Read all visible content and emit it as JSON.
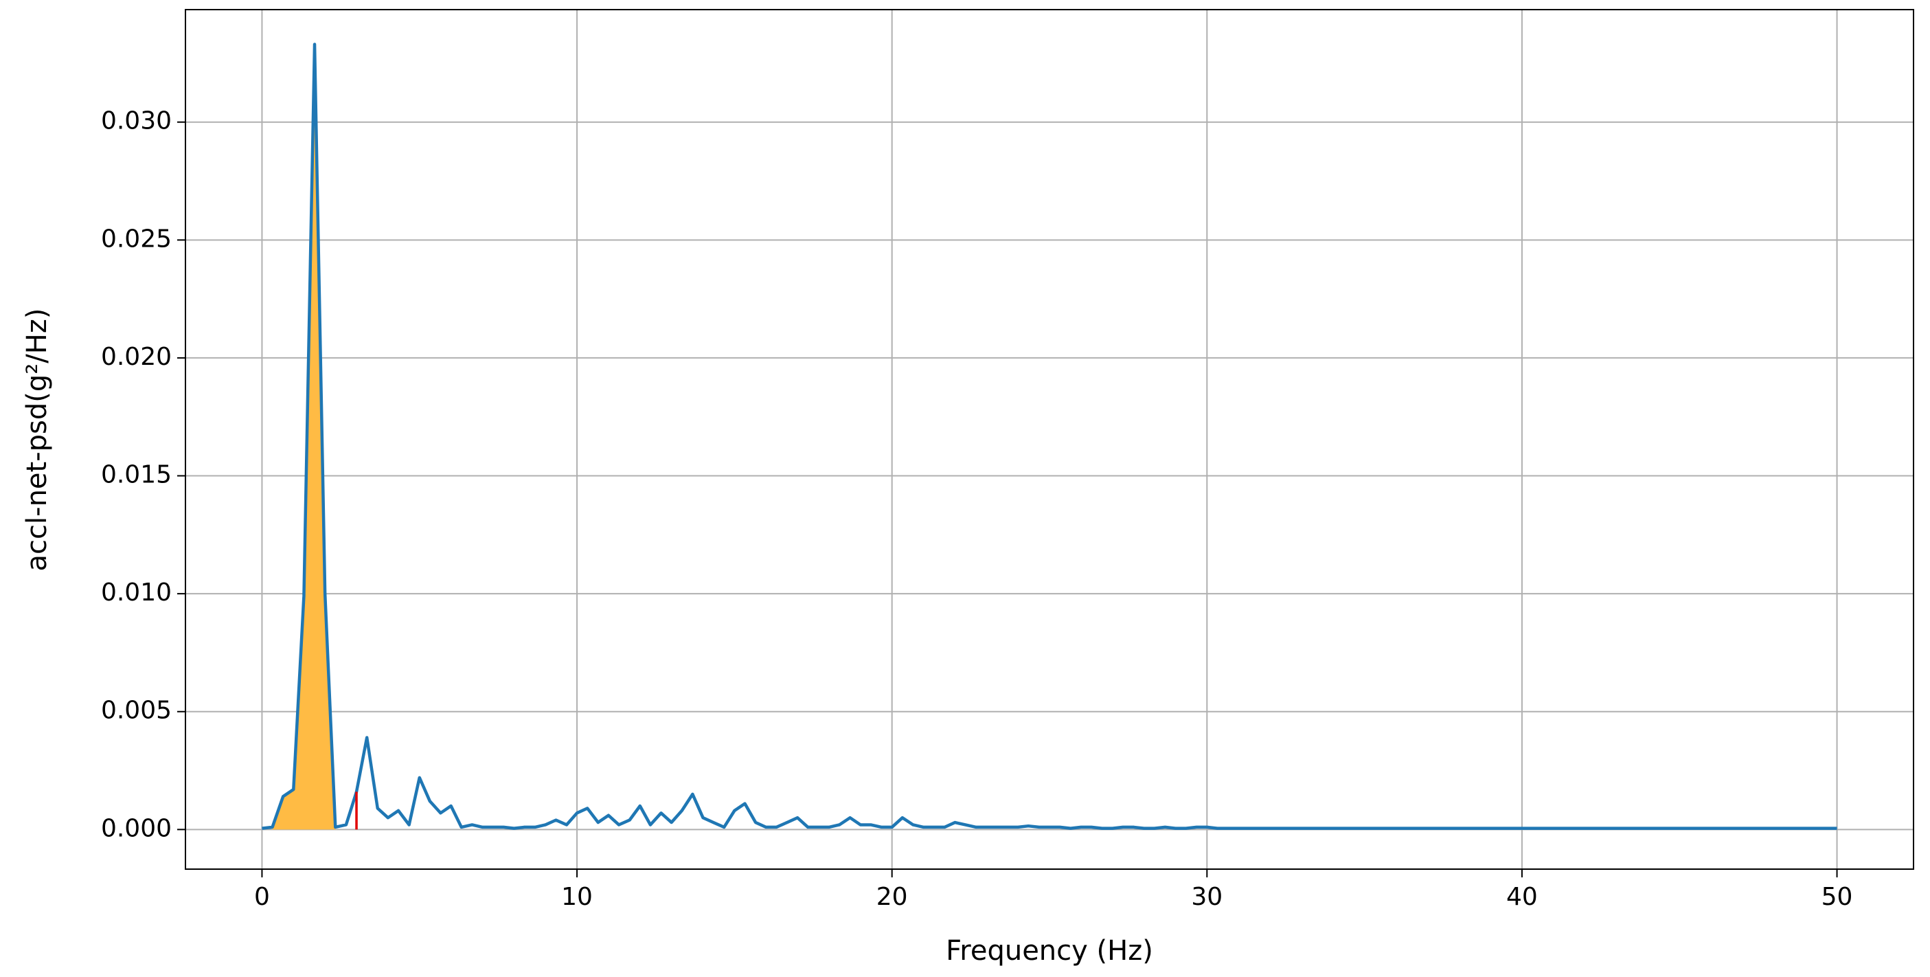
{
  "chart_data": {
    "type": "line",
    "x_label": "Frequency (Hz)",
    "y_label": "accl-net-psd(g²/Hz)",
    "x": [
      0,
      0.33,
      0.67,
      1,
      1.33,
      1.67,
      2,
      2.33,
      2.67,
      3,
      3.33,
      3.67,
      4,
      4.33,
      4.67,
      5,
      5.33,
      5.67,
      6,
      6.33,
      6.67,
      7,
      7.33,
      7.67,
      8,
      8.33,
      8.67,
      9,
      9.33,
      9.67,
      10,
      10.33,
      10.67,
      11,
      11.33,
      11.67,
      12,
      12.33,
      12.67,
      13,
      13.33,
      13.67,
      14,
      14.33,
      14.67,
      15,
      15.33,
      15.67,
      16,
      16.33,
      16.67,
      17,
      17.33,
      17.67,
      18,
      18.33,
      18.67,
      19,
      19.33,
      19.67,
      20,
      20.33,
      20.67,
      21,
      21.33,
      21.67,
      22,
      22.33,
      22.67,
      23,
      23.33,
      23.67,
      24,
      24.33,
      24.67,
      25,
      25.33,
      25.67,
      26,
      26.33,
      26.67,
      27,
      27.33,
      27.67,
      28,
      28.33,
      28.67,
      29,
      29.33,
      29.67,
      30,
      30.33,
      30.67,
      31,
      31.33,
      31.67,
      32,
      32.33,
      32.67,
      33,
      33.33,
      33.67,
      34,
      34.33,
      34.67,
      35,
      35.33,
      35.67,
      36,
      36.33,
      36.67,
      37,
      37.33,
      37.67,
      38,
      38.33,
      38.67,
      39,
      39.33,
      39.67,
      40,
      40.33,
      40.67,
      41,
      41.33,
      41.67,
      42,
      42.33,
      42.67,
      43,
      43.33,
      43.67,
      44,
      44.33,
      44.67,
      45,
      45.33,
      45.67,
      46,
      46.33,
      46.67,
      47,
      47.33,
      47.67,
      48,
      48.33,
      48.67,
      49,
      49.33,
      49.67,
      50
    ],
    "series": [
      {
        "color": "#1f77b4",
        "values": [
          5e-05,
          0.0001,
          0.0014,
          0.0017,
          0.0099,
          0.0333,
          0.01,
          0.0001,
          0.0002,
          0.0016,
          0.0039,
          0.0009,
          0.0005,
          0.0008,
          0.0002,
          0.0022,
          0.0012,
          0.0007,
          0.001,
          0.0001,
          0.0002,
          0.0001,
          0.0001,
          0.0001,
          5e-05,
          0.0001,
          0.0001,
          0.0002,
          0.0004,
          0.0002,
          0.0007,
          0.0009,
          0.0003,
          0.0006,
          0.0002,
          0.0004,
          0.001,
          0.0002,
          0.0007,
          0.0003,
          0.0008,
          0.0015,
          0.0005,
          0.0003,
          0.0001,
          0.0008,
          0.0011,
          0.0003,
          0.0001,
          0.0001,
          0.0003,
          0.0005,
          0.0001,
          0.0001,
          0.0001,
          0.0002,
          0.0005,
          0.0002,
          0.0002,
          0.0001,
          0.0001,
          0.0005,
          0.0002,
          0.0001,
          0.0001,
          0.0001,
          0.0003,
          0.0002,
          0.0001,
          0.0001,
          0.0001,
          0.0001,
          0.0001,
          0.00015,
          0.0001,
          0.0001,
          0.0001,
          5e-05,
          0.0001,
          0.0001,
          5e-05,
          5e-05,
          0.0001,
          0.0001,
          5e-05,
          5e-05,
          0.0001,
          5e-05,
          5e-05,
          0.0001,
          0.0001,
          5e-05,
          5e-05,
          5e-05,
          5e-05,
          5e-05,
          5e-05,
          5e-05,
          5e-05,
          5e-05,
          5e-05,
          5e-05,
          5e-05,
          5e-05,
          5e-05,
          5e-05,
          5e-05,
          5e-05,
          5e-05,
          5e-05,
          5e-05,
          5e-05,
          5e-05,
          5e-05,
          5e-05,
          5e-05,
          5e-05,
          5e-05,
          5e-05,
          5e-05,
          5e-05,
          5e-05,
          5e-05,
          5e-05,
          5e-05,
          5e-05,
          5e-05,
          5e-05,
          5e-05,
          5e-05,
          5e-05,
          5e-05,
          5e-05,
          5e-05,
          5e-05,
          5e-05,
          5e-05,
          5e-05,
          5e-05,
          5e-05,
          5e-05,
          5e-05,
          5e-05,
          5e-05,
          5e-05,
          5e-05,
          5e-05,
          5e-05,
          5e-05,
          5e-05,
          5e-05
        ]
      }
    ],
    "fill_range": [
      0.33,
      2.33
    ],
    "fill_color": "#ffbb44",
    "vline": {
      "x": 3,
      "ymax": 0.0016,
      "color": "#e00000"
    },
    "xlim": [
      -2.43,
      52.43
    ],
    "ylim": [
      -0.00168,
      0.03477
    ],
    "xticks": [
      0,
      10,
      20,
      30,
      40,
      50
    ],
    "yticks": [
      {
        "value": 0,
        "label": "0.000"
      },
      {
        "value": 0.005,
        "label": "0.005"
      },
      {
        "value": 0.01,
        "label": "0.010"
      },
      {
        "value": 0.015,
        "label": "0.015"
      },
      {
        "value": 0.02,
        "label": "0.020"
      },
      {
        "value": 0.025,
        "label": "0.025"
      },
      {
        "value": 0.03,
        "label": "0.030"
      }
    ],
    "grid": true
  }
}
